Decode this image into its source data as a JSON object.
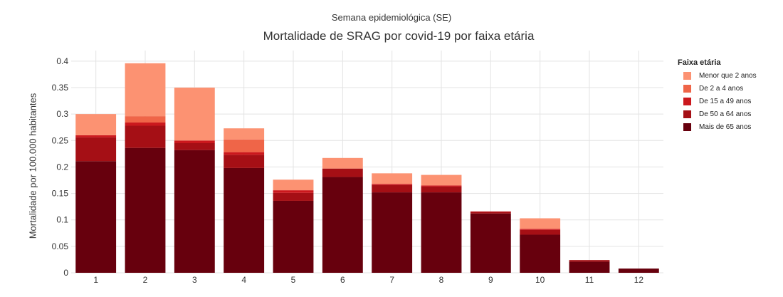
{
  "chart_data": {
    "type": "bar",
    "stacked": true,
    "supertitle": "Semana epidemiológica (SE)",
    "title": "Mortalidade de SRAG por covid-19 por faixa etária",
    "xlabel": "",
    "ylabel": "Mortalidade por 100.000 habitantes",
    "categories": [
      "1",
      "2",
      "3",
      "4",
      "5",
      "6",
      "7",
      "8",
      "9",
      "10",
      "11",
      "12"
    ],
    "ylim": [
      0,
      0.42
    ],
    "yticks": [
      0,
      0.05,
      0.1,
      0.15,
      0.2,
      0.25,
      0.3,
      0.35,
      0.4
    ],
    "ytick_labels": [
      "0",
      "0.05",
      "0.1",
      "0.15",
      "0.2",
      "0.25",
      "0.3",
      "0.35",
      "0.4"
    ],
    "grid": true,
    "legend": {
      "title": "Faixa etária",
      "placement": "right"
    },
    "series": [
      {
        "name": "Mais de 65 anos",
        "color": "#67000d",
        "values": [
          0.211,
          0.236,
          0.232,
          0.198,
          0.136,
          0.181,
          0.152,
          0.152,
          0.112,
          0.072,
          0.021,
          0.008
        ]
      },
      {
        "name": "De 50 a 64 anos",
        "color": "#a50f15",
        "values": [
          0.045,
          0.042,
          0.013,
          0.025,
          0.015,
          0.016,
          0.014,
          0.011,
          0.003,
          0.009,
          0.003,
          0.0
        ]
      },
      {
        "name": "De 15 a 49 anos",
        "color": "#cb181d",
        "values": [
          0.004,
          0.006,
          0.005,
          0.005,
          0.005,
          0.0,
          0.002,
          0.002,
          0.001,
          0.002,
          0.0,
          0.0
        ]
      },
      {
        "name": "De 2 a 4 anos",
        "color": "#ef6548",
        "values": [
          0.0,
          0.012,
          0.0,
          0.024,
          0.0,
          0.0,
          0.0,
          0.0,
          0.0,
          0.0,
          0.0,
          0.0
        ]
      },
      {
        "name": "Menor que 2 anos",
        "color": "#fc9272",
        "values": [
          0.04,
          0.1,
          0.1,
          0.021,
          0.02,
          0.02,
          0.02,
          0.02,
          0.0,
          0.02,
          0.0,
          0.0
        ]
      }
    ]
  }
}
